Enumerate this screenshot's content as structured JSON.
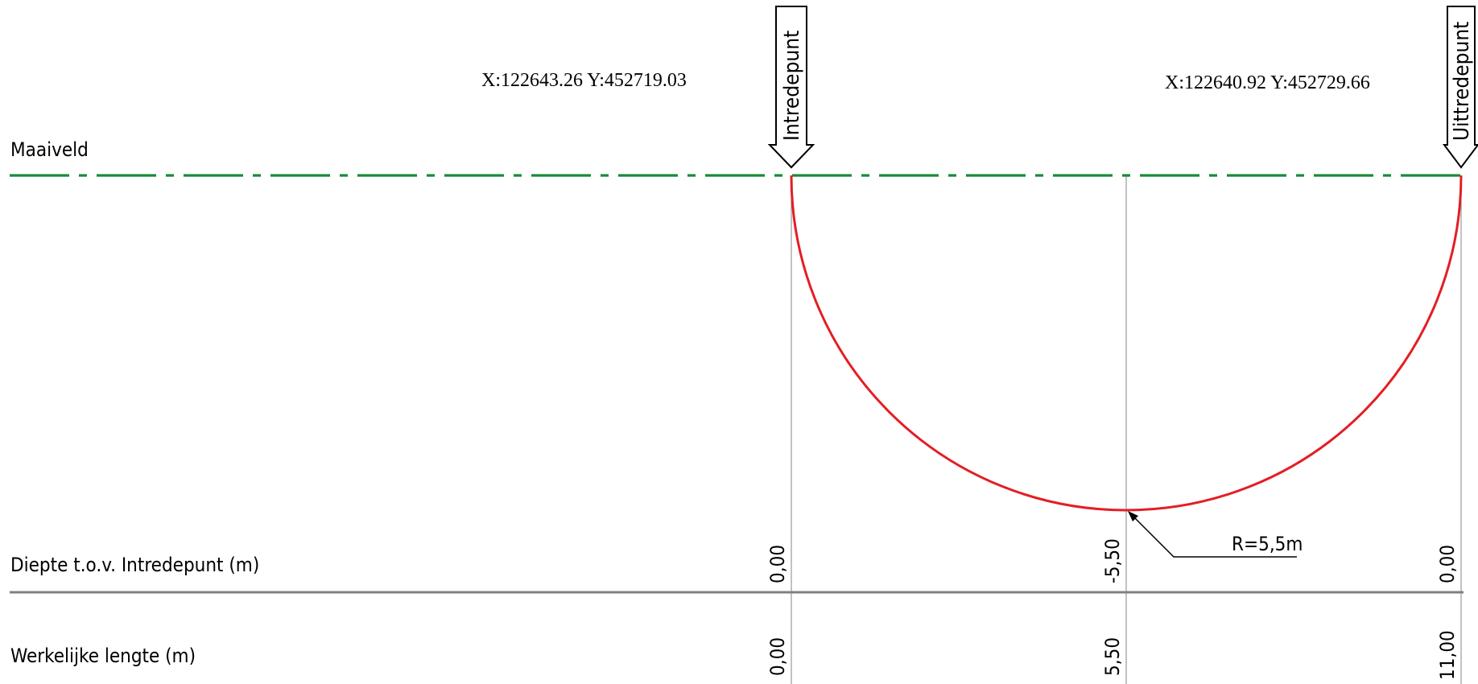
{
  "labels": {
    "maaiveld": "Maaiveld",
    "depth_row": "Diepte t.o.v. Intredepunt (m)",
    "length_row": "Werkelijke lengte (m)"
  },
  "entry": {
    "marker_label": "Intredepunt",
    "coordinates": "X:122643.26  Y:452719.03"
  },
  "exit": {
    "marker_label": "Uittredepunt",
    "coordinates": "X:122640.92 Y:452729.66"
  },
  "radius_label": "R=5,5m",
  "stations": [
    {
      "depth": "0,00",
      "length": "0,00"
    },
    {
      "depth": "-5,50",
      "length": "5,50"
    },
    {
      "depth": "0,00",
      "length": "11,00"
    }
  ],
  "colors": {
    "ground_line": "#1a8a3a",
    "bore_path": "#e31e24",
    "axis_line": "#808080",
    "grid_line": "#9a9a9a"
  }
}
